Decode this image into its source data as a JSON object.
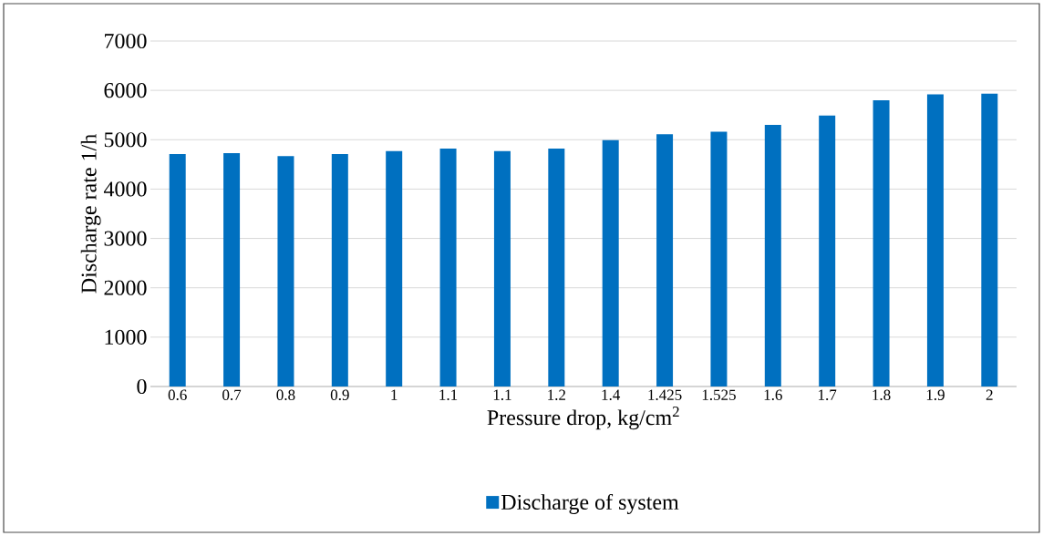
{
  "chart_data": {
    "type": "bar",
    "xlabel": "Pressure drop, kg/cm$^{2}$",
    "ylabel": "Discharge rate 1/h",
    "categories": [
      "0.6",
      "0.7",
      "0.8",
      "0.9",
      "1",
      "1.1",
      "1.1",
      "1.2",
      "1.4",
      "1.425",
      "1.525",
      "1.6",
      "1.7",
      "1.8",
      "1.9",
      "2"
    ],
    "series": [
      {
        "name": "Discharge of system",
        "color": "#0070c0",
        "values": [
          4710,
          4730,
          4670,
          4710,
          4770,
          4820,
          4770,
          4820,
          4990,
          5110,
          5160,
          5300,
          5490,
          5800,
          5920,
          5940
        ]
      }
    ],
    "ylim": [
      0,
      7000
    ],
    "yticks": [
      0,
      1000,
      2000,
      3000,
      4000,
      5000,
      6000,
      7000
    ],
    "grid": "y",
    "legend": "bottom"
  }
}
